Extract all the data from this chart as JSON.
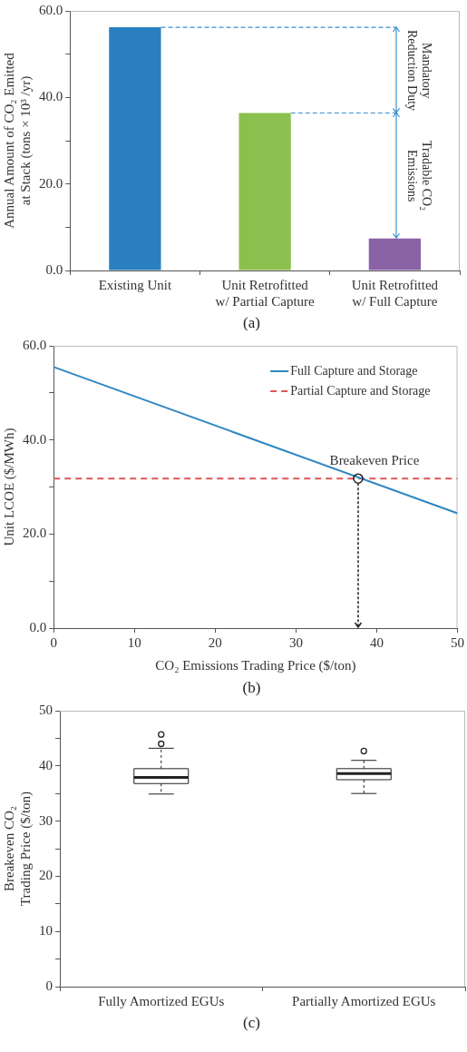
{
  "chart_data": [
    {
      "type": "bar",
      "ylabel": "Annual Amount of CO₂ Emitted at Stack (tons × 10³ /yr)",
      "categories": [
        "Existing Unit",
        "Unit Retrofitted w/ Partial Capture",
        "Unit Retrofitted w/ Full Capture"
      ],
      "values": [
        56.2,
        36.4,
        7.4
      ],
      "colors": [
        "#2a7fc1",
        "#8bc04f",
        "#8a62a6"
      ],
      "ylim": [
        0,
        60
      ],
      "yticks": [
        {
          "value": 0,
          "label": "0.0"
        },
        {
          "value": 10,
          "label": null
        },
        {
          "value": 20,
          "label": "20.0"
        },
        {
          "value": 30,
          "label": null
        },
        {
          "value": 40,
          "label": "40.0"
        },
        {
          "value": 50,
          "label": null
        },
        {
          "value": 60,
          "label": "60.0"
        }
      ],
      "ref_lines": [
        {
          "axis": "y",
          "value": 56.2,
          "color": "#3a8fd0",
          "line_style": "dashed"
        },
        {
          "axis": "y",
          "value": 36.4,
          "color": "#3a8fd0",
          "line_style": "dashed"
        }
      ],
      "annotations": [
        "Mandatory Reduction Duty",
        "Tradable CO₂ Emissions",
        "(a)"
      ]
    },
    {
      "type": "line",
      "xlabel": "CO₂ Emissions Trading Price ($/ton)",
      "ylabel": "Unit LCOE ($/MWh)",
      "xlim": [
        0,
        50
      ],
      "xticks": [
        0,
        10,
        20,
        30,
        40,
        50
      ],
      "ylim": [
        0,
        60
      ],
      "yticks": [
        {
          "value": 0,
          "label": "0.0"
        },
        {
          "value": 10,
          "label": null
        },
        {
          "value": 20,
          "label": "20.0"
        },
        {
          "value": 30,
          "label": null
        },
        {
          "value": 40,
          "label": "40.0"
        },
        {
          "value": 50,
          "label": null
        },
        {
          "value": 60,
          "label": "60.0"
        }
      ],
      "legend": "top right",
      "x": [
        0,
        50
      ],
      "series": [
        {
          "name": "Full Capture and Storage",
          "color": "#2e86c1",
          "values": [
            55.5,
            24.4
          ],
          "line_style": "solid"
        },
        {
          "name": "Partial Capture and Storage",
          "color": "#e05555",
          "values": [
            31.8,
            31.8
          ],
          "line_style": "dashed"
        }
      ],
      "annotations": [
        {
          "text": "Breakeven Price",
          "x": 37.7,
          "y": 31.8
        },
        "(b)"
      ]
    },
    {
      "type": "box",
      "ylabel": "Breakeven CO₂ Trading Price ($/ton)",
      "categories": [
        "Fully Amortized EGUs",
        "Partially Amortized EGUs"
      ],
      "ylim": [
        0,
        50
      ],
      "yticks": [
        0,
        {
          "value": 5,
          "label": null
        },
        10,
        {
          "value": 15,
          "label": null
        },
        20,
        {
          "value": 25,
          "label": null
        },
        30,
        {
          "value": 35,
          "label": null
        },
        40,
        {
          "value": 45,
          "label": null
        },
        50
      ],
      "boxes": [
        {
          "low": 34.9,
          "q1": 36.8,
          "median": 37.9,
          "q3": 39.5,
          "high": 43.2,
          "outliers": [
            44.0,
            45.7
          ]
        },
        {
          "low": 35.0,
          "q1": 37.5,
          "median": 38.6,
          "q3": 39.5,
          "high": 41.0,
          "outliers": [
            42.7
          ]
        }
      ],
      "annotations": [
        "(c)"
      ]
    }
  ]
}
